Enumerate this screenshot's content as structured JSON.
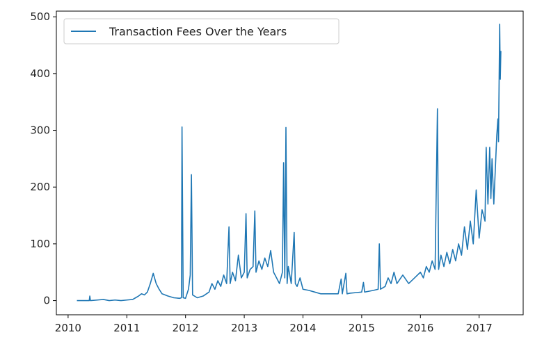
{
  "chart_data": {
    "type": "line",
    "title": "",
    "xlabel": "",
    "ylabel": "",
    "xlim": [
      2009.8,
      2017.75
    ],
    "ylim": [
      -25,
      510
    ],
    "x_ticks": [
      "2010",
      "2011",
      "2012",
      "2013",
      "2014",
      "2015",
      "2016",
      "2017"
    ],
    "y_ticks": [
      "0",
      "100",
      "200",
      "300",
      "400",
      "500"
    ],
    "grid": false,
    "legend_position": "top-left",
    "series": [
      {
        "name": "Transaction Fees Over the Years",
        "color": "#1f77b4",
        "points": [
          [
            2010.15,
            0
          ],
          [
            2010.3,
            0
          ],
          [
            2010.36,
            0
          ],
          [
            2010.37,
            8
          ],
          [
            2010.38,
            0
          ],
          [
            2010.5,
            1
          ],
          [
            2010.6,
            2
          ],
          [
            2010.7,
            0
          ],
          [
            2010.8,
            1
          ],
          [
            2010.9,
            0
          ],
          [
            2011.0,
            1
          ],
          [
            2011.1,
            2
          ],
          [
            2011.15,
            5
          ],
          [
            2011.2,
            8
          ],
          [
            2011.25,
            12
          ],
          [
            2011.3,
            10
          ],
          [
            2011.35,
            15
          ],
          [
            2011.4,
            30
          ],
          [
            2011.45,
            48
          ],
          [
            2011.5,
            30
          ],
          [
            2011.55,
            20
          ],
          [
            2011.6,
            12
          ],
          [
            2011.7,
            8
          ],
          [
            2011.8,
            5
          ],
          [
            2011.9,
            4
          ],
          [
            2011.93,
            5
          ],
          [
            2011.94,
            306
          ],
          [
            2011.96,
            5
          ],
          [
            2012.0,
            4
          ],
          [
            2012.05,
            20
          ],
          [
            2012.08,
            45
          ],
          [
            2012.1,
            222
          ],
          [
            2012.12,
            10
          ],
          [
            2012.2,
            5
          ],
          [
            2012.3,
            8
          ],
          [
            2012.4,
            15
          ],
          [
            2012.45,
            30
          ],
          [
            2012.5,
            20
          ],
          [
            2012.55,
            35
          ],
          [
            2012.6,
            25
          ],
          [
            2012.65,
            45
          ],
          [
            2012.7,
            30
          ],
          [
            2012.74,
            130
          ],
          [
            2012.76,
            30
          ],
          [
            2012.8,
            50
          ],
          [
            2012.85,
            35
          ],
          [
            2012.9,
            80
          ],
          [
            2012.95,
            40
          ],
          [
            2013.0,
            50
          ],
          [
            2013.03,
            153
          ],
          [
            2013.05,
            40
          ],
          [
            2013.1,
            55
          ],
          [
            2013.15,
            60
          ],
          [
            2013.18,
            158
          ],
          [
            2013.2,
            50
          ],
          [
            2013.25,
            70
          ],
          [
            2013.3,
            55
          ],
          [
            2013.35,
            75
          ],
          [
            2013.4,
            60
          ],
          [
            2013.45,
            88
          ],
          [
            2013.5,
            50
          ],
          [
            2013.55,
            40
          ],
          [
            2013.6,
            30
          ],
          [
            2013.65,
            50
          ],
          [
            2013.67,
            243
          ],
          [
            2013.69,
            40
          ],
          [
            2013.71,
            305
          ],
          [
            2013.73,
            30
          ],
          [
            2013.75,
            60
          ],
          [
            2013.8,
            30
          ],
          [
            2013.85,
            120
          ],
          [
            2013.87,
            30
          ],
          [
            2013.9,
            25
          ],
          [
            2013.95,
            40
          ],
          [
            2014.0,
            20
          ],
          [
            2014.1,
            18
          ],
          [
            2014.2,
            15
          ],
          [
            2014.3,
            12
          ],
          [
            2014.4,
            12
          ],
          [
            2014.5,
            12
          ],
          [
            2014.6,
            12
          ],
          [
            2014.65,
            38
          ],
          [
            2014.67,
            12
          ],
          [
            2014.73,
            48
          ],
          [
            2014.75,
            12
          ],
          [
            2014.8,
            13
          ],
          [
            2014.9,
            14
          ],
          [
            2015.0,
            15
          ],
          [
            2015.03,
            32
          ],
          [
            2015.05,
            15
          ],
          [
            2015.1,
            16
          ],
          [
            2015.2,
            18
          ],
          [
            2015.28,
            20
          ],
          [
            2015.3,
            100
          ],
          [
            2015.32,
            20
          ],
          [
            2015.4,
            25
          ],
          [
            2015.45,
            40
          ],
          [
            2015.5,
            30
          ],
          [
            2015.55,
            50
          ],
          [
            2015.6,
            30
          ],
          [
            2015.7,
            45
          ],
          [
            2015.8,
            30
          ],
          [
            2015.9,
            40
          ],
          [
            2016.0,
            50
          ],
          [
            2016.05,
            40
          ],
          [
            2016.1,
            60
          ],
          [
            2016.15,
            50
          ],
          [
            2016.2,
            70
          ],
          [
            2016.25,
            55
          ],
          [
            2016.29,
            338
          ],
          [
            2016.31,
            55
          ],
          [
            2016.35,
            80
          ],
          [
            2016.4,
            60
          ],
          [
            2016.45,
            85
          ],
          [
            2016.5,
            65
          ],
          [
            2016.55,
            90
          ],
          [
            2016.6,
            70
          ],
          [
            2016.65,
            100
          ],
          [
            2016.7,
            80
          ],
          [
            2016.75,
            130
          ],
          [
            2016.8,
            90
          ],
          [
            2016.85,
            140
          ],
          [
            2016.9,
            100
          ],
          [
            2016.95,
            195
          ],
          [
            2017.0,
            110
          ],
          [
            2017.05,
            160
          ],
          [
            2017.1,
            140
          ],
          [
            2017.12,
            270
          ],
          [
            2017.15,
            170
          ],
          [
            2017.18,
            270
          ],
          [
            2017.2,
            180
          ],
          [
            2017.22,
            250
          ],
          [
            2017.25,
            170
          ],
          [
            2017.3,
            290
          ],
          [
            2017.32,
            320
          ],
          [
            2017.33,
            280
          ],
          [
            2017.35,
            487
          ],
          [
            2017.36,
            390
          ],
          [
            2017.37,
            440
          ]
        ]
      }
    ]
  }
}
